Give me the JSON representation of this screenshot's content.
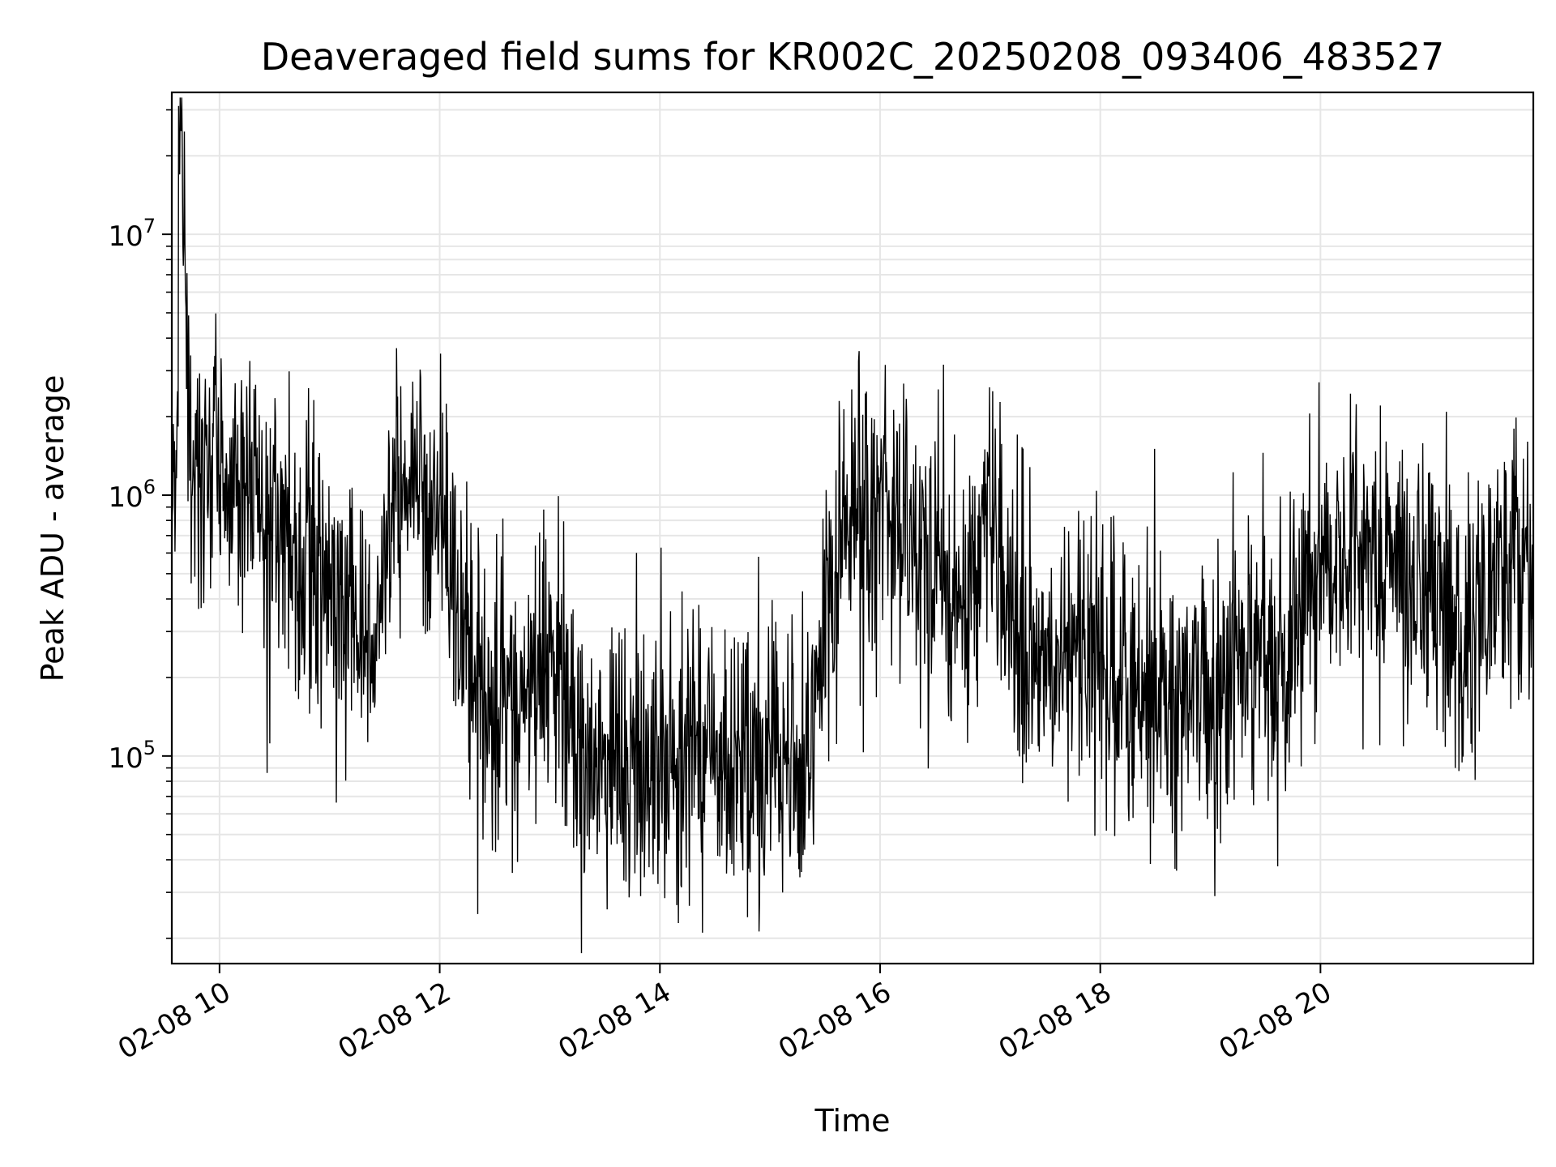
{
  "chart_data": {
    "type": "line",
    "title": "Deaveraged field sums for KR002C_20250208_093406_483527",
    "xlabel": "Time",
    "ylabel": "Peak ADU - average",
    "yscale": "log",
    "xlim": [
      "2025-02-08 09:34",
      "2025-02-08 21:56"
    ],
    "ylim": [
      16000,
      35000000
    ],
    "grid": true,
    "line_color": "#000000",
    "x_ticks": [
      {
        "label": "02-08 10",
        "time": "2025-02-08 10:00"
      },
      {
        "label": "02-08 12",
        "time": "2025-02-08 12:00"
      },
      {
        "label": "02-08 14",
        "time": "2025-02-08 14:00"
      },
      {
        "label": "02-08 16",
        "time": "2025-02-08 16:00"
      },
      {
        "label": "02-08 18",
        "time": "2025-02-08 18:00"
      },
      {
        "label": "02-08 20",
        "time": "2025-02-08 20:00"
      }
    ],
    "y_ticks": [
      {
        "mantissa": "10",
        "exponent": "5",
        "value": 100000
      },
      {
        "mantissa": "10",
        "exponent": "6",
        "value": 1000000
      },
      {
        "mantissa": "10",
        "exponent": "7",
        "value": 10000000
      }
    ],
    "series": [
      {
        "x": [
          "2025-02-08 09:34",
          "2025-02-08 09:36",
          "2025-02-08 09:39",
          "2025-02-08 09:45",
          "2025-02-08 10:00",
          "2025-02-08 10:20",
          "2025-02-08 10:40",
          "2025-02-08 11:00",
          "2025-02-08 11:20",
          "2025-02-08 11:40",
          "2025-02-08 12:00",
          "2025-02-08 12:20",
          "2025-02-08 12:40",
          "2025-02-08 13:00",
          "2025-02-08 13:20",
          "2025-02-08 13:40",
          "2025-02-08 14:00",
          "2025-02-08 14:20",
          "2025-02-08 14:40",
          "2025-02-08 15:00",
          "2025-02-08 15:20",
          "2025-02-08 15:40",
          "2025-02-08 16:00",
          "2025-02-08 16:20",
          "2025-02-08 16:40",
          "2025-02-08 17:00",
          "2025-02-08 17:20",
          "2025-02-08 17:40",
          "2025-02-08 18:00",
          "2025-02-08 18:20",
          "2025-02-08 18:40",
          "2025-02-08 19:00",
          "2025-02-08 19:20",
          "2025-02-08 19:40",
          "2025-02-08 20:00",
          "2025-02-08 20:20",
          "2025-02-08 20:40",
          "2025-02-08 21:00",
          "2025-02-08 21:20",
          "2025-02-08 21:40",
          "2025-02-08 21:56"
        ],
        "y": [
          500000,
          900000,
          25000000,
          1000000,
          1200000,
          1000000,
          700000,
          400000,
          250000,
          1200000,
          1000000,
          200000,
          150000,
          250000,
          90000,
          90000,
          80000,
          120000,
          90000,
          110000,
          100000,
          900000,
          1100000,
          600000,
          400000,
          700000,
          250000,
          250000,
          250000,
          180000,
          180000,
          200000,
          250000,
          250000,
          600000,
          700000,
          600000,
          400000,
          300000,
          550000,
          600000
        ]
      }
    ]
  }
}
